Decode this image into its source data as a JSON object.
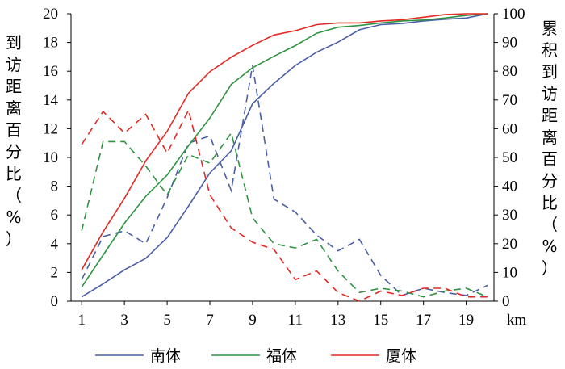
{
  "chart_data": {
    "type": "line",
    "y_left_label": "到访距离百分比（%）",
    "y_right_label": "累积到访距离百分比（%）",
    "x_unit": "km",
    "x_ticks": [
      1,
      3,
      5,
      7,
      9,
      11,
      13,
      15,
      17,
      19
    ],
    "y_left_ticks": [
      0,
      2,
      4,
      6,
      8,
      10,
      12,
      14,
      16,
      18,
      20
    ],
    "y_right_ticks": [
      0,
      10,
      20,
      30,
      40,
      50,
      60,
      70,
      80,
      90,
      100
    ],
    "xlim": [
      0.5,
      20.3
    ],
    "ylim_left": [
      0,
      20
    ],
    "ylim_right": [
      0,
      100
    ],
    "grid": false,
    "legend_position": "bottom",
    "x": [
      1,
      2,
      3,
      4,
      5,
      6,
      7,
      8,
      9,
      10,
      11,
      12,
      13,
      14,
      15,
      16,
      17,
      18,
      19,
      20
    ],
    "series": [
      {
        "name": "南体",
        "color": "#4a5fa6",
        "percent": [
          1.5,
          4.5,
          4.9,
          4.0,
          7.2,
          11.0,
          11.5,
          7.7,
          16.4,
          7.1,
          6.2,
          4.6,
          3.5,
          4.3,
          1.8,
          0.4,
          0.9,
          0.6,
          0.4,
          1.1
        ],
        "cumulative": [
          1.5,
          6.0,
          10.9,
          14.9,
          22.1,
          33.1,
          44.6,
          52.3,
          68.7,
          75.8,
          82.0,
          86.6,
          90.1,
          94.4,
          96.2,
          96.6,
          97.5,
          98.1,
          98.5,
          100
        ]
      },
      {
        "name": "福体",
        "color": "#2e9442",
        "percent": [
          4.9,
          11.1,
          11.1,
          9.4,
          7.4,
          10.2,
          9.6,
          11.7,
          5.8,
          4.0,
          3.7,
          4.3,
          2.1,
          0.6,
          0.9,
          0.7,
          0.3,
          0.7,
          0.9,
          0.3
        ],
        "cumulative": [
          4.9,
          16.0,
          27.1,
          36.5,
          43.9,
          54.1,
          63.7,
          75.4,
          81.2,
          85.2,
          88.9,
          93.2,
          95.3,
          95.9,
          96.8,
          97.5,
          97.8,
          98.5,
          99.4,
          100
        ]
      },
      {
        "name": "厦体",
        "color": "#e42a24",
        "percent": [
          10.9,
          13.2,
          11.7,
          13.0,
          10.3,
          13.3,
          7.4,
          5.1,
          4.1,
          3.6,
          1.5,
          2.1,
          0.6,
          0.0,
          0.7,
          0.4,
          0.9,
          0.9,
          0.3,
          0.3
        ],
        "cumulative": [
          10.9,
          24.1,
          35.8,
          48.8,
          59.1,
          72.4,
          79.8,
          84.9,
          89.0,
          92.6,
          94.1,
          96.2,
          96.8,
          96.8,
          97.5,
          97.9,
          98.8,
          99.7,
          100,
          100
        ]
      }
    ]
  }
}
